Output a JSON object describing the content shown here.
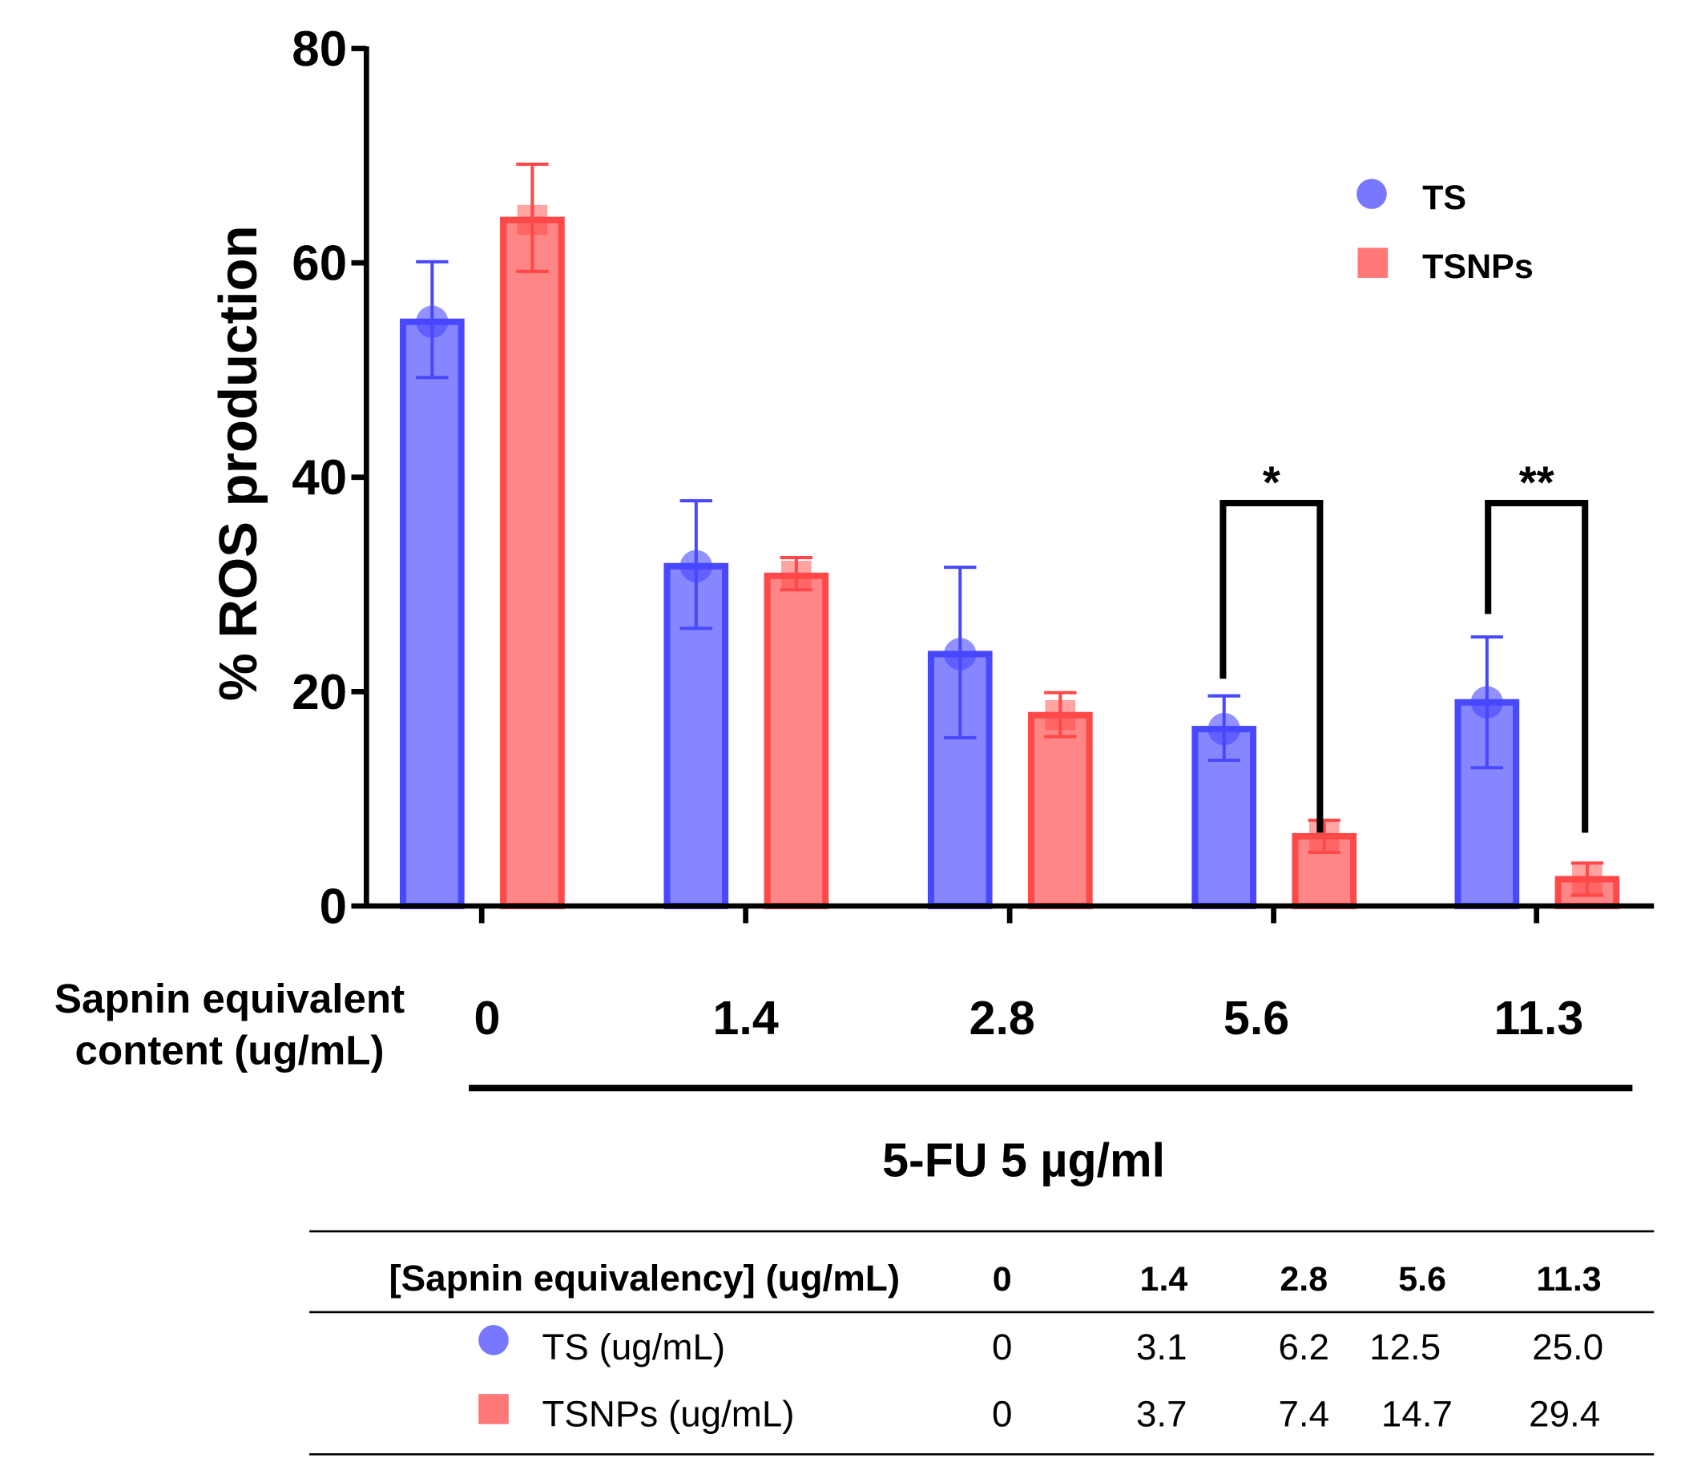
{
  "chart_data": {
    "type": "bar",
    "ylabel": "% ROS production",
    "ylim": [
      0,
      80
    ],
    "yticks": [
      "0",
      "20",
      "40",
      "60",
      "80"
    ],
    "xlabel": "Sapnin equivalent content (ug/mL)",
    "xlabel_lines": [
      "Sapnin equivalent",
      "content (ug/mL)"
    ],
    "categories": [
      "0",
      "1.4",
      "2.8",
      "5.6",
      "11.3"
    ],
    "group_label": "5-FU 5 µg/ml",
    "legend": {
      "placement": "top-right",
      "entries": [
        "TS",
        "TSNPs"
      ]
    },
    "series": [
      {
        "name": "TS",
        "color": "#8080ff",
        "stroke": "#4848ff",
        "marker": "circle",
        "values": [
          54.5,
          31.7,
          23.5,
          16.5,
          19.0
        ],
        "err_high": [
          60.1,
          37.8,
          31.6,
          19.6,
          25.1
        ],
        "err_low": [
          49.3,
          25.9,
          15.7,
          13.6,
          12.9
        ]
      },
      {
        "name": "TSNPs",
        "color": "#ff8080",
        "stroke": "#ff4848",
        "marker": "square",
        "values": [
          64.0,
          30.8,
          17.8,
          6.5,
          2.5
        ],
        "err_high": [
          69.2,
          32.5,
          19.9,
          8.0,
          4.0
        ],
        "err_low": [
          59.2,
          29.5,
          15.8,
          5.0,
          1.0
        ]
      }
    ],
    "significance": [
      {
        "category": "5.6",
        "label": "*"
      },
      {
        "category": "11.3",
        "label": "**"
      }
    ]
  },
  "table": {
    "header": [
      "[Sapnin equivalency] (ug/mL)",
      "0",
      "1.4",
      "2.8",
      "5.6",
      "11.3"
    ],
    "rows": [
      {
        "label": "TS (ug/mL)",
        "marker": "circle",
        "values": [
          "0",
          "3.1",
          "6.2",
          "12.5",
          "25.0"
        ]
      },
      {
        "label": "TSNPs (ug/mL)",
        "marker": "square",
        "values": [
          "0",
          "3.7",
          "7.4",
          "14.7",
          "29.4"
        ]
      }
    ]
  }
}
